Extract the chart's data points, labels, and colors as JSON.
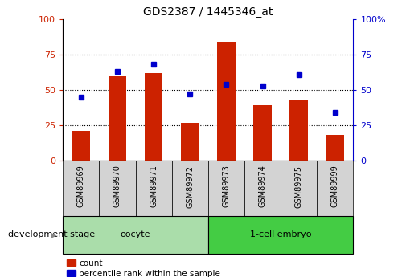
{
  "title": "GDS2387 / 1445346_at",
  "samples": [
    "GSM89969",
    "GSM89970",
    "GSM89971",
    "GSM89972",
    "GSM89973",
    "GSM89974",
    "GSM89975",
    "GSM89999"
  ],
  "counts": [
    21,
    60,
    62,
    27,
    84,
    39,
    43,
    18
  ],
  "percentiles": [
    45,
    63,
    68,
    47,
    54,
    53,
    61,
    34
  ],
  "bar_color": "#cc2200",
  "dot_color": "#0000cc",
  "ylim": [
    0,
    100
  ],
  "yticks": [
    0,
    25,
    50,
    75,
    100
  ],
  "left_yaxis_color": "#cc2200",
  "right_yaxis_color": "#0000cc",
  "tick_area_color": "#d3d3d3",
  "oocyte_color": "#aaddaa",
  "embryo_color": "#44cc44",
  "legend_count_label": "count",
  "legend_percentile_label": "percentile rank within the sample",
  "dev_stage_label": "development stage",
  "group_info": [
    {
      "start": 0,
      "end": 3,
      "label": "oocyte",
      "color": "#aaddaa"
    },
    {
      "start": 4,
      "end": 7,
      "label": "1-cell embryo",
      "color": "#44cc44"
    }
  ]
}
